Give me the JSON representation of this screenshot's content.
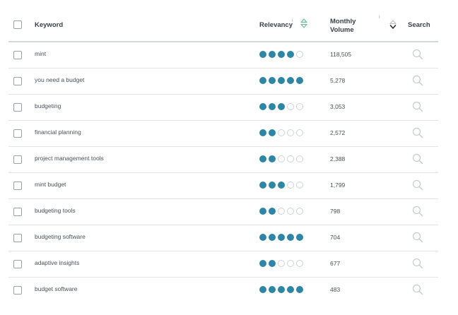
{
  "header": {
    "keyword": "Keyword",
    "relevancy": "Relevancy",
    "relevancy_info": "i",
    "monthly": "Monthly Volume",
    "monthly_info": "i",
    "search": "Search"
  },
  "colors": {
    "dot_filled": "#2e86a6",
    "dot_empty": "#cfd3d7",
    "sort_icon": "#6fb8a0"
  },
  "rows": [
    {
      "keyword": "mint",
      "relevancy": 4,
      "volume": "118,505"
    },
    {
      "keyword": "you need a budget",
      "relevancy": 5,
      "volume": "5,278"
    },
    {
      "keyword": "budgeting",
      "relevancy": 3,
      "volume": "3,053"
    },
    {
      "keyword": "financial planning",
      "relevancy": 2,
      "volume": "2,572"
    },
    {
      "keyword": "project management tools",
      "relevancy": 2,
      "volume": "2,388"
    },
    {
      "keyword": "mint budget",
      "relevancy": 3,
      "volume": "1,799"
    },
    {
      "keyword": "budgeting tools",
      "relevancy": 2,
      "volume": "798"
    },
    {
      "keyword": "budgeting software",
      "relevancy": 5,
      "volume": "704"
    },
    {
      "keyword": "adaptive insights",
      "relevancy": 2,
      "volume": "677"
    },
    {
      "keyword": "budget software",
      "relevancy": 5,
      "volume": "483"
    }
  ]
}
